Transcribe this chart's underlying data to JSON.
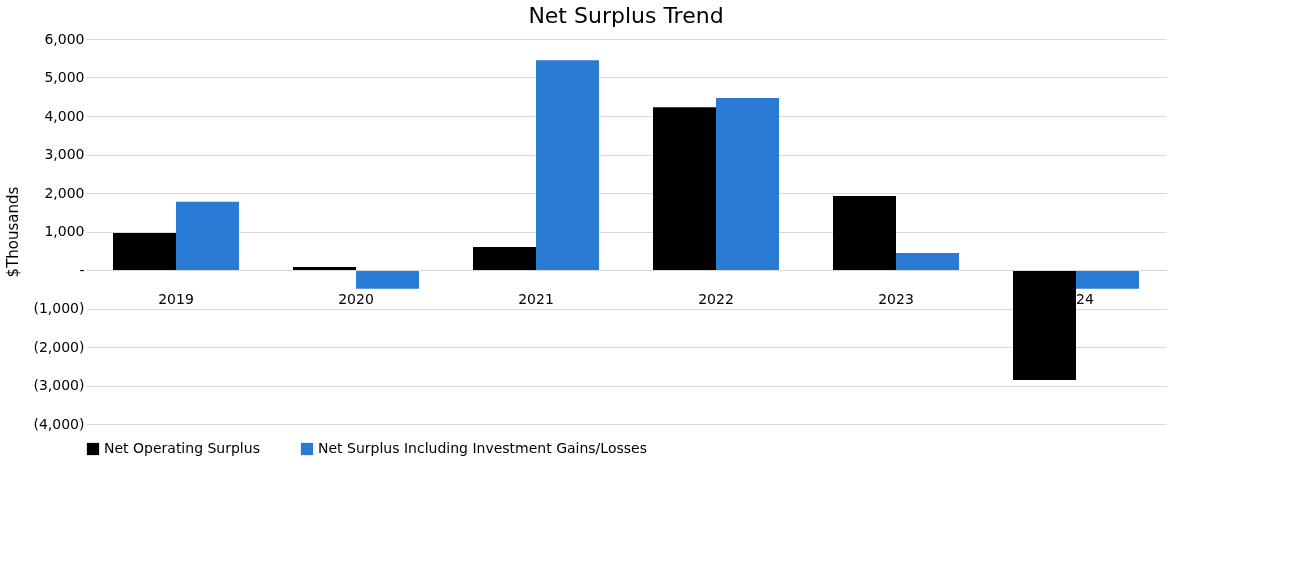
{
  "chart_data": {
    "type": "bar",
    "title": "Net Surplus Trend",
    "ylabel": "$Thousands",
    "categories": [
      "2019",
      "2020",
      "2021",
      "2022",
      "2023",
      "24"
    ],
    "series": [
      {
        "name": "Net Operating Surplus",
        "color": "#000000",
        "values": [
          960,
          80,
          600,
          4230,
          1920,
          -2860
        ]
      },
      {
        "name": "Net Surplus Including Investment Gains/Losses",
        "color": "#2a7bd4",
        "values": [
          1770,
          -490,
          5450,
          4470,
          440,
          -490
        ]
      }
    ],
    "ylim": [
      -4000,
      6000
    ],
    "yticks": [
      {
        "value": -4000,
        "label": "(4,000)"
      },
      {
        "value": -3000,
        "label": "(3,000)"
      },
      {
        "value": -2000,
        "label": "(2,000)"
      },
      {
        "value": -1000,
        "label": "(1,000)"
      },
      {
        "value": 0,
        "label": "-"
      },
      {
        "value": 1000,
        "label": "1,000"
      },
      {
        "value": 2000,
        "label": "2,000"
      },
      {
        "value": 3000,
        "label": "3,000"
      },
      {
        "value": 4000,
        "label": "4,000"
      },
      {
        "value": 5000,
        "label": "5,000"
      },
      {
        "value": 6000,
        "label": "6,000"
      }
    ],
    "grid": "y",
    "legend": "bottom"
  }
}
